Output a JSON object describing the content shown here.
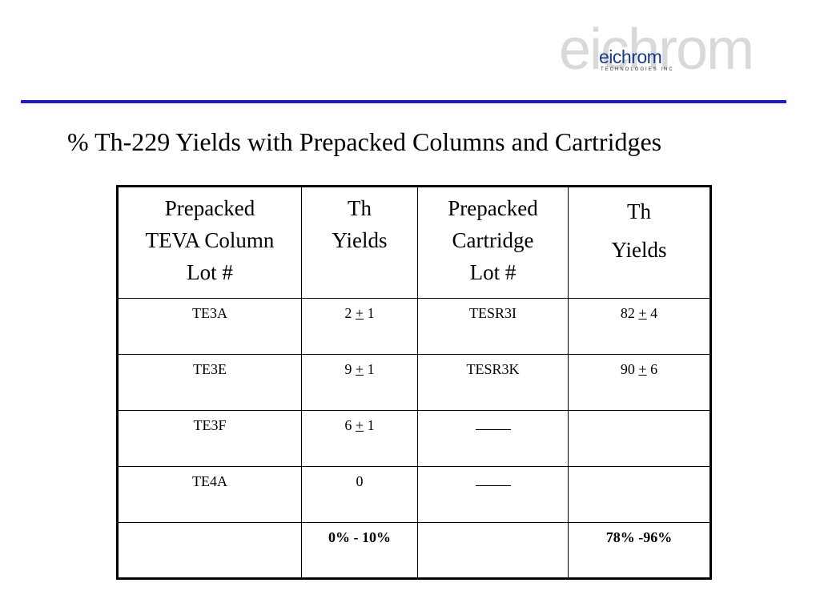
{
  "logo": {
    "text_big": "eichrom",
    "text_small": "eichrom",
    "tagline": "TECHNOLOGIES INC"
  },
  "title": "% Th-229 Yields with Prepacked Columns and Cartridges",
  "table": {
    "headers": [
      [
        "Prepacked",
        "TEVA Column",
        "Lot #"
      ],
      [
        "Th",
        "Yields"
      ],
      [
        "Prepacked",
        "Cartridge",
        "Lot #"
      ],
      [
        "Th",
        "Yields"
      ]
    ],
    "rows": [
      {
        "col_lot": "TE3A",
        "col_yield": {
          "val": "2",
          "pm": "+",
          "err": "1"
        },
        "cart_lot": "TESR3I",
        "cart_yield": {
          "val": "82",
          "pm": "+",
          "err": "4"
        }
      },
      {
        "col_lot": "TE3E",
        "col_yield": {
          "val": "9",
          "pm": "+",
          "err": "1"
        },
        "cart_lot": "TESR3K",
        "cart_yield": {
          "val": "90",
          "pm": "+",
          "err": "6"
        }
      },
      {
        "col_lot": "TE3F",
        "col_yield": {
          "val": "6",
          "pm": "+",
          "err": "1"
        },
        "cart_lot": "blank",
        "cart_yield": null
      },
      {
        "col_lot": "TE4A",
        "col_yield": {
          "val": "0",
          "pm": "",
          "err": ""
        },
        "cart_lot": "blank",
        "cart_yield": null
      }
    ],
    "totals": {
      "col_range": "0% - 10%",
      "cart_range": "78% -96%"
    }
  }
}
